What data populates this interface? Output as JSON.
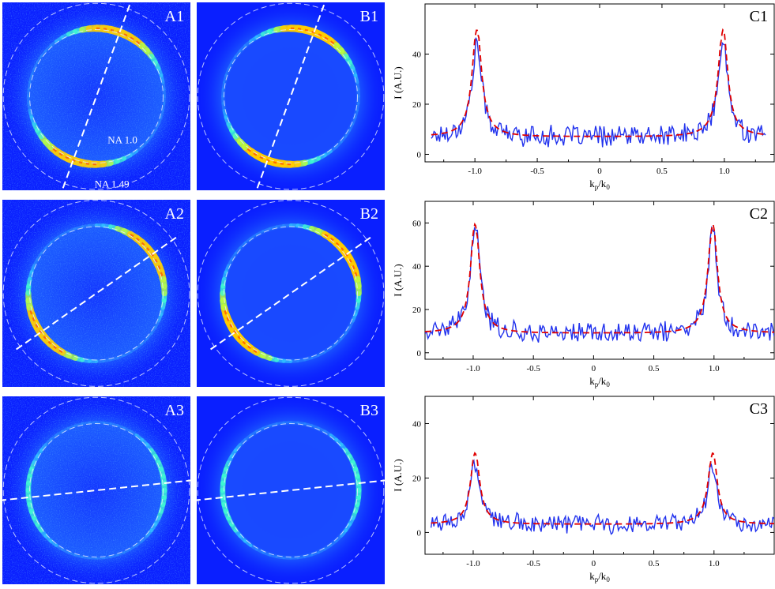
{
  "colors": {
    "panel_bg": "#0a1fff",
    "dashed_circle": "#e6ecff",
    "scan_line": "#ffffff",
    "measured": "#2233ee",
    "fit": "#e00000",
    "panel_label": "#ffffff"
  },
  "image_panels": [
    {
      "label": "A1",
      "type": "measured",
      "polarization_deg": 70,
      "inner_circle_label": "NA 1.0",
      "outer_circle_label": "NA 1.49"
    },
    {
      "label": "B1",
      "type": "simulated",
      "polarization_deg": 70,
      "inner_circle_label": "",
      "outer_circle_label": ""
    },
    {
      "label": "A2",
      "type": "measured",
      "polarization_deg": 35,
      "inner_circle_label": "",
      "outer_circle_label": ""
    },
    {
      "label": "B2",
      "type": "simulated",
      "polarization_deg": 35,
      "inner_circle_label": "",
      "outer_circle_label": ""
    },
    {
      "label": "A3",
      "type": "measured",
      "polarization_deg": 6,
      "inner_circle_label": "",
      "outer_circle_label": ""
    },
    {
      "label": "B3",
      "type": "simulated",
      "polarization_deg": 6,
      "inner_circle_label": "",
      "outer_circle_label": ""
    }
  ],
  "chart_data": [
    {
      "type": "line",
      "label": "C1",
      "xlabel_main": "k",
      "xlabel_sub1": "p",
      "xlabel_mid": "/k",
      "xlabel_sub2": "0",
      "ylabel": "I (A.U.)",
      "xlim": [
        -1.4,
        1.4
      ],
      "ylim": [
        -3,
        60
      ],
      "xticks": [
        -1.0,
        -0.5,
        0,
        0.5,
        1.0
      ],
      "xtick_labels": [
        "-1.0",
        "-0.5",
        "0",
        "0.5",
        "1.0"
      ],
      "yticks": [
        0,
        20,
        40
      ],
      "ytick_labels": [
        "0",
        "20",
        "40"
      ],
      "grid": false,
      "peak": 51,
      "baseline": 7,
      "series": [
        {
          "style": "solid",
          "x_range": [
            -1.35,
            1.33
          ],
          "peak": 45,
          "noise": 3.2
        },
        {
          "style": "dashed",
          "x_range": [
            -1.35,
            1.33
          ]
        }
      ]
    },
    {
      "type": "line",
      "label": "C2",
      "xlabel_main": "k",
      "xlabel_sub1": "p",
      "xlabel_mid": "/k",
      "xlabel_sub2": "0",
      "ylabel": "I (A.U.)",
      "xlim": [
        -1.4,
        1.5
      ],
      "ylim": [
        -3,
        70
      ],
      "xticks": [
        -1.0,
        -0.5,
        0,
        0.5,
        1.0
      ],
      "xtick_labels": [
        "-1.0",
        "-0.5",
        "0",
        "0.5",
        "1.0"
      ],
      "yticks": [
        0,
        20,
        40,
        60
      ],
      "ytick_labels": [
        "0",
        "20",
        "40",
        "60"
      ],
      "grid": false,
      "peak": 61,
      "baseline": 9,
      "series": [
        {
          "style": "solid",
          "x_range": [
            -1.4,
            1.5
          ],
          "peak": 60,
          "noise": 3.5
        },
        {
          "style": "dashed",
          "x_range": [
            -1.4,
            1.5
          ]
        }
      ]
    },
    {
      "type": "line",
      "label": "C3",
      "xlabel_main": "k",
      "xlabel_sub1": "p",
      "xlabel_mid": "/k",
      "xlabel_sub2": "0",
      "ylabel": "I (A.U.)",
      "xlim": [
        -1.4,
        1.5
      ],
      "ylim": [
        -8,
        50
      ],
      "xticks": [
        -1.0,
        -0.5,
        0,
        0.5,
        1.0
      ],
      "xtick_labels": [
        "-1.0",
        "-0.5",
        "0",
        "0.5",
        "1.0"
      ],
      "yticks": [
        0,
        20,
        40
      ],
      "ytick_labels": [
        "0",
        "20",
        "40"
      ],
      "grid": false,
      "peak": 30,
      "baseline": 3,
      "series": [
        {
          "style": "solid",
          "x_range": [
            -1.35,
            1.5
          ],
          "peak": 26,
          "noise": 2.6
        },
        {
          "style": "dashed",
          "x_range": [
            -1.35,
            1.5
          ]
        }
      ]
    }
  ]
}
